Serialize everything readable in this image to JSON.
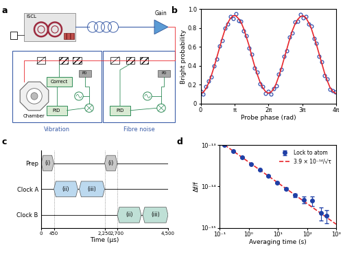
{
  "panel_labels": [
    "a",
    "b",
    "c",
    "d"
  ],
  "diagram": {
    "laser": "ISCL",
    "amplifier": "Gain",
    "chamber": "Chamber",
    "vibration_box": {
      "title": "Vibration",
      "correct": "Correct",
      "pid": "PID",
      "detector": "PD"
    },
    "fibre_box": {
      "title": "Fibre noise",
      "pid": "PID",
      "detector": "PD"
    }
  },
  "chart_data": [
    {
      "type": "scatter",
      "xlabel": "Probe phase (rad)",
      "ylabel": "Bright probability",
      "xlim": [
        0,
        12.566
      ],
      "ylim": [
        0,
        1
      ],
      "xticks": [
        0,
        {
          "value": 3.1416,
          "label": "π"
        },
        {
          "value": 6.2832,
          "label": "2π"
        },
        {
          "value": 9.4248,
          "label": "3π"
        },
        {
          "value": 12.566,
          "label": "4π"
        }
      ],
      "yticks": [
        0,
        0.2,
        0.4,
        0.6,
        0.8,
        {
          "value": 1,
          "label": "1.0"
        }
      ],
      "series": [
        {
          "type": "scatter",
          "color": "#1f3fa6",
          "marker": "circle",
          "x": [
            0,
            0.25,
            0.5,
            0.75,
            1.0,
            1.25,
            1.5,
            1.75,
            2.0,
            2.25,
            2.5,
            2.75,
            3.0,
            3.25,
            3.5,
            3.75,
            4.0,
            4.25,
            4.5,
            4.75,
            5.0,
            5.25,
            5.5,
            5.75,
            6.0,
            6.25,
            6.5,
            6.75,
            7.0,
            7.25,
            7.5,
            7.75,
            8.0,
            8.25,
            8.5,
            8.75,
            9.0,
            9.25,
            9.5,
            9.75,
            10.0,
            10.25,
            10.5,
            10.75,
            11.0,
            11.25,
            11.5,
            11.75,
            12.0,
            12.25,
            12.5
          ],
          "values": [
            0.13,
            0.1,
            0.18,
            0.24,
            0.28,
            0.4,
            0.47,
            0.61,
            0.67,
            0.8,
            0.84,
            0.92,
            0.9,
            0.95,
            0.88,
            0.87,
            0.77,
            0.72,
            0.59,
            0.52,
            0.38,
            0.33,
            0.21,
            0.18,
            0.11,
            0.13,
            0.1,
            0.16,
            0.19,
            0.31,
            0.36,
            0.5,
            0.56,
            0.7,
            0.75,
            0.86,
            0.87,
            0.94,
            0.91,
            0.92,
            0.84,
            0.82,
            0.69,
            0.64,
            0.5,
            0.44,
            0.3,
            0.26,
            0.15,
            0.14,
            0.12
          ]
        },
        {
          "type": "line",
          "color": "#e8262b",
          "line_style": "solid",
          "x": [
            0,
            0.25,
            0.5,
            0.75,
            1.0,
            1.25,
            1.5,
            1.75,
            2.0,
            2.25,
            2.5,
            2.75,
            3.0,
            3.25,
            3.5,
            3.75,
            4.0,
            4.25,
            4.5,
            4.75,
            5.0,
            5.25,
            5.5,
            5.75,
            6.0,
            6.25,
            6.5,
            6.75,
            7.0,
            7.25,
            7.5,
            7.75,
            8.0,
            8.25,
            8.5,
            8.75,
            9.0,
            9.25,
            9.5,
            9.75,
            10.0,
            10.25,
            10.5,
            10.75,
            11.0,
            11.25,
            11.5,
            11.75,
            12.0,
            12.25,
            12.5
          ],
          "values": [
            0.11,
            0.12,
            0.16,
            0.22,
            0.3,
            0.39,
            0.49,
            0.59,
            0.69,
            0.78,
            0.85,
            0.9,
            0.93,
            0.93,
            0.9,
            0.86,
            0.79,
            0.7,
            0.61,
            0.5,
            0.4,
            0.31,
            0.23,
            0.17,
            0.13,
            0.11,
            0.12,
            0.15,
            0.21,
            0.29,
            0.38,
            0.48,
            0.58,
            0.68,
            0.77,
            0.84,
            0.89,
            0.92,
            0.93,
            0.91,
            0.86,
            0.8,
            0.71,
            0.62,
            0.52,
            0.42,
            0.32,
            0.24,
            0.17,
            0.13,
            0.11
          ]
        }
      ]
    },
    {
      "type": "timeline",
      "xlabel": "Time (μs)",
      "categories": [
        "Prep",
        "Clock A",
        "Clock B"
      ],
      "colors": [
        "#c8c8c8",
        "#bcd9ef",
        "#bfe0d6"
      ],
      "xlim": [
        0,
        4500
      ],
      "xticks": [
        0,
        450,
        {
          "value": 2250,
          "label": "2,250"
        },
        {
          "value": 2700,
          "label": "2,700"
        },
        {
          "value": 4500,
          "label": "4,500"
        }
      ],
      "grid": true,
      "segments": [
        {
          "category": "Prep",
          "label": "(i)",
          "start": 0,
          "end": 450
        },
        {
          "category": "Clock A",
          "label": "(ii)",
          "start": 450,
          "end": 1300
        },
        {
          "category": "Clock A",
          "label": "(iii)",
          "start": 1350,
          "end": 2250
        },
        {
          "category": "Prep",
          "label": "(i)",
          "start": 2250,
          "end": 2700
        },
        {
          "category": "Clock B",
          "label": "(ii)",
          "start": 2700,
          "end": 3550
        },
        {
          "category": "Clock B",
          "label": "(iii)",
          "start": 3600,
          "end": 4500
        }
      ]
    },
    {
      "type": "scatter",
      "xlabel": "Averaging time (s)",
      "ylabel": "Δf/f",
      "log": true,
      "legend": "upper right",
      "xlim": [
        0.1,
        1000
      ],
      "ylim": [
        1e-15,
        1e-13
      ],
      "xticks": [
        {
          "value": 0.1,
          "label": "10⁻¹"
        },
        {
          "value": 1,
          "label": "10⁰"
        },
        {
          "value": 10,
          "label": "10¹"
        },
        {
          "value": 100,
          "label": "10²"
        },
        {
          "value": 1000,
          "label": "10³"
        }
      ],
      "yticks": [
        {
          "value": 1e-15,
          "label": "10⁻¹⁵"
        },
        {
          "value": 1e-14,
          "label": "10⁻¹⁴"
        },
        {
          "value": 1e-13,
          "label": "10⁻¹³"
        }
      ],
      "series": [
        {
          "name": "Lock to atom",
          "type": "scatter",
          "color": "#1f3fa6",
          "marker": "circle",
          "x": [
            0.15,
            0.3,
            0.6,
            1.2,
            2.4,
            4.8,
            9.6,
            19.2,
            38.4,
            76.8,
            153.6,
            300,
            460
          ],
          "values": [
            1e-13,
            7e-14,
            5.1e-14,
            3.5e-14,
            2.5e-14,
            1.8e-14,
            1.25e-14,
            8.8e-15,
            6.2e-15,
            4.8e-15,
            4.6e-15,
            2.3e-15,
            2e-15
          ],
          "errors": [
            3e-15,
            2e-15,
            1.5e-15,
            1e-15,
            8e-16,
            6e-16,
            5e-16,
            5e-16,
            6e-16,
            9e-16,
            1.2e-15,
            8e-16,
            7e-16
          ]
        },
        {
          "name": "3.9 × 10⁻¹⁴/√τ",
          "type": "line",
          "color": "#e8262b",
          "line_style": "dashed",
          "x": [
            0.1,
            1000
          ],
          "values": [
            1.23e-13,
            1.23e-15
          ]
        }
      ]
    }
  ]
}
